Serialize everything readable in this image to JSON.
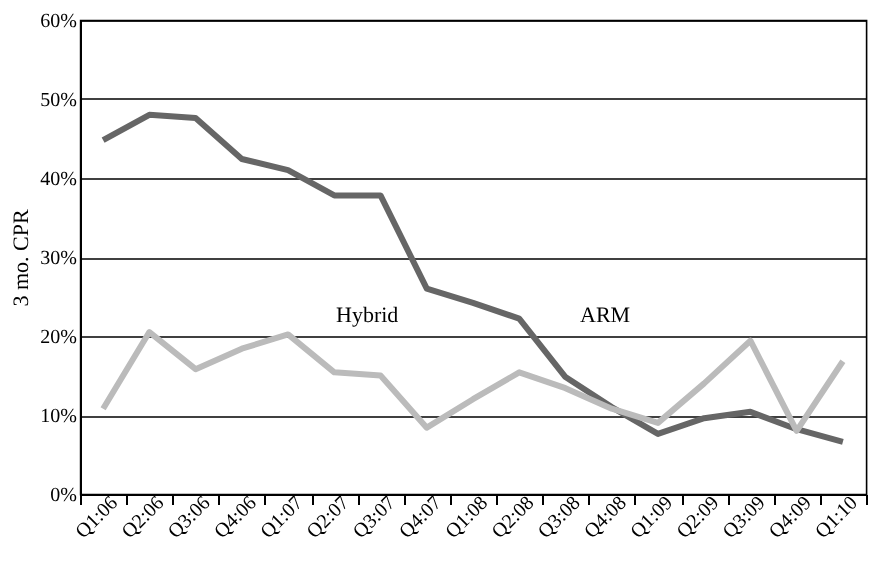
{
  "chart_data": {
    "type": "line",
    "ylabel": "3 mo. CPR",
    "categories": [
      "Q1:06",
      "Q2:06",
      "Q3:06",
      "Q4:06",
      "Q1:07",
      "Q2:07",
      "Q3:07",
      "Q4:07",
      "Q1:08",
      "Q2:08",
      "Q3:08",
      "Q4:08",
      "Q1:09",
      "Q2:09",
      "Q3:09",
      "Q4:09",
      "Q1:10"
    ],
    "series": [
      {
        "name": "ARM",
        "color": "#666666",
        "values": [
          44.8,
          48,
          47.6,
          42.4,
          41,
          37.8,
          37.8,
          26,
          24.2,
          22.2,
          14.8,
          11,
          7.6,
          9.6,
          10.4,
          8.2,
          6.6
        ]
      },
      {
        "name": "Hybrid",
        "color": "#bbbbbb",
        "values": [
          10.8,
          20.5,
          15.8,
          18.4,
          20.2,
          15.4,
          15,
          8.4,
          12,
          15.4,
          13.4,
          10.8,
          9,
          14,
          19.4,
          8,
          16.8
        ]
      }
    ],
    "ylim": [
      0,
      60
    ],
    "yticks": [
      {
        "value": 0,
        "label": "0%"
      },
      {
        "value": 10,
        "label": "10%"
      },
      {
        "value": 20,
        "label": "20%"
      },
      {
        "value": 30,
        "label": "30%"
      },
      {
        "value": 40,
        "label": "40%"
      },
      {
        "value": 50,
        "label": "50%"
      },
      {
        "value": 60,
        "label": "60%"
      }
    ],
    "grid": "y",
    "marker": "none",
    "line_style": "solid"
  }
}
